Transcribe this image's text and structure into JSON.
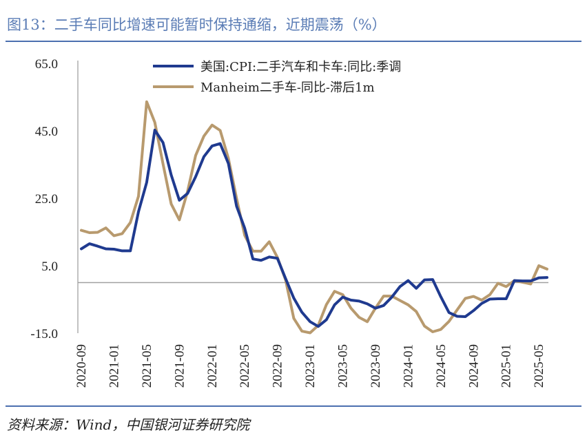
{
  "figure": {
    "title": "图13：二手车同比增速可能暂时保持通缩，近期震荡（%）",
    "source": "资料来源：Wind，中国银河证券研究院"
  },
  "chart_data": {
    "type": "line",
    "title": "",
    "xlabel": "",
    "ylabel": "",
    "ylim": [
      -15,
      65
    ],
    "y_ticks": [
      "65.0",
      "45.0",
      "25.0",
      "5.0",
      "-15.0"
    ],
    "x_tick_labels": [
      "2020-09",
      "2021-01",
      "2021-05",
      "2021-09",
      "2022-01",
      "2022-05",
      "2022-09",
      "2023-01",
      "2023-05",
      "2023-09",
      "2024-01",
      "2024-05",
      "2024-09",
      "2025-01",
      "2025-05"
    ],
    "x": [
      "2020-09",
      "2020-10",
      "2020-11",
      "2020-12",
      "2021-01",
      "2021-02",
      "2021-03",
      "2021-04",
      "2021-05",
      "2021-06",
      "2021-07",
      "2021-08",
      "2021-09",
      "2021-10",
      "2021-11",
      "2021-12",
      "2022-01",
      "2022-02",
      "2022-03",
      "2022-04",
      "2022-05",
      "2022-06",
      "2022-07",
      "2022-08",
      "2022-09",
      "2022-10",
      "2022-11",
      "2022-12",
      "2023-01",
      "2023-02",
      "2023-03",
      "2023-04",
      "2023-05",
      "2023-06",
      "2023-07",
      "2023-08",
      "2023-09",
      "2023-10",
      "2023-11",
      "2023-12",
      "2024-01",
      "2024-02",
      "2024-03",
      "2024-04",
      "2024-05",
      "2024-06",
      "2024-07",
      "2024-08",
      "2024-09",
      "2024-10",
      "2024-11",
      "2024-12",
      "2025-01",
      "2025-02",
      "2025-03",
      "2025-04",
      "2025-05",
      "2025-06"
    ],
    "zero_line": true,
    "legend_position": "top",
    "grid": false,
    "series": [
      {
        "name": "美国:CPI:二手汽车和卡车:同比:季调",
        "color": "#1f3a8f",
        "values": [
          10.0,
          11.5,
          10.8,
          10.0,
          9.9,
          9.4,
          9.4,
          21.0,
          29.7,
          45.2,
          41.5,
          31.9,
          24.4,
          26.4,
          31.4,
          37.3,
          40.5,
          41.2,
          35.3,
          22.7,
          16.1,
          7.0,
          6.6,
          7.6,
          7.2,
          1.2,
          -4.6,
          -8.8,
          -11.6,
          -13.0,
          -11.0,
          -6.6,
          -4.3,
          -5.2,
          -5.5,
          -6.3,
          -7.6,
          -6.8,
          -4.3,
          -1.2,
          0.6,
          -1.7,
          0.8,
          0.9,
          -4.2,
          -8.9,
          -10.0,
          -10.1,
          -8.3,
          -6.2,
          -4.9,
          -4.8,
          -4.8,
          0.6,
          0.5,
          0.5,
          1.4,
          1.5
        ]
      },
      {
        "name": "Manheim二手车-同比-滞后1m",
        "color": "#b89a6e",
        "values": [
          15.5,
          14.8,
          14.9,
          16.2,
          13.9,
          14.5,
          17.8,
          25.6,
          53.6,
          47.5,
          35.2,
          23.3,
          18.6,
          27.0,
          37.7,
          43.4,
          46.7,
          45.1,
          36.8,
          25.0,
          14.0,
          9.3,
          9.3,
          12.1,
          7.5,
          0.8,
          -10.6,
          -14.4,
          -14.9,
          -12.7,
          -6.5,
          -2.6,
          -3.6,
          -7.6,
          -10.3,
          -11.6,
          -7.6,
          -4.0,
          -4.0,
          -5.3,
          -6.6,
          -8.6,
          -12.9,
          -14.6,
          -13.9,
          -11.5,
          -8.1,
          -4.7,
          -4.1,
          -5.2,
          -3.6,
          -0.2,
          -1.2,
          0.6,
          0.1,
          -0.4,
          5.0,
          4.0
        ]
      }
    ]
  }
}
